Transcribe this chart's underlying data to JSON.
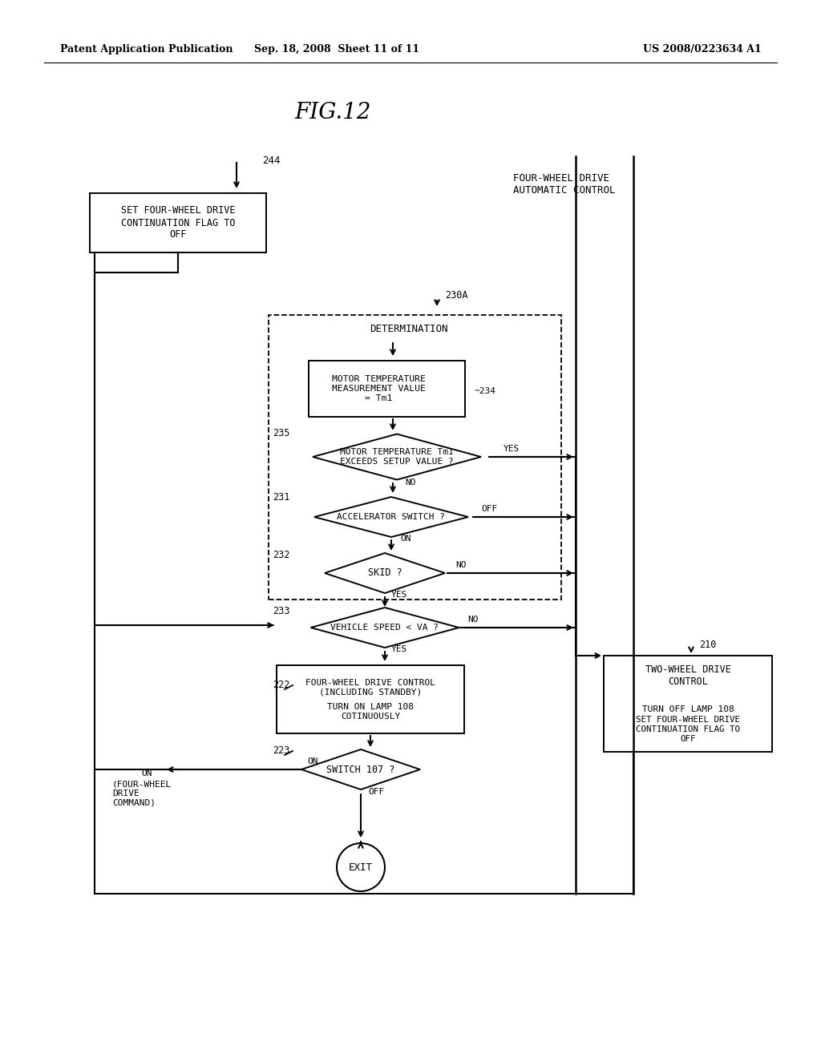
{
  "title": "FIG.12",
  "header_left": "Patent Application Publication",
  "header_center": "Sep. 18, 2008  Sheet 11 of 11",
  "header_right": "US 2008/0223634 A1",
  "bg_color": "#ffffff",
  "line_color": "#000000"
}
